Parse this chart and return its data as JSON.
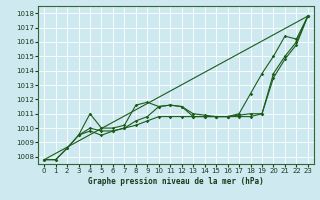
{
  "title": "Graphe pression niveau de la mer (hPa)",
  "bg_color": "#cee9f0",
  "grid_color": "#ffffff",
  "line_color": "#1a5c1a",
  "xlim": [
    -0.5,
    23.5
  ],
  "ylim": [
    1007.5,
    1018.5
  ],
  "yticks": [
    1008,
    1009,
    1010,
    1011,
    1012,
    1013,
    1014,
    1015,
    1016,
    1017,
    1018
  ],
  "xticks": [
    0,
    1,
    2,
    3,
    4,
    5,
    6,
    7,
    8,
    9,
    10,
    11,
    12,
    13,
    14,
    15,
    16,
    17,
    18,
    19,
    20,
    21,
    22,
    23
  ],
  "line_straight": {
    "x": [
      0,
      23
    ],
    "y": [
      1007.8,
      1017.8
    ]
  },
  "line1": {
    "x": [
      0,
      1,
      2,
      3,
      4,
      5,
      6,
      7,
      8,
      9,
      10,
      11,
      12,
      13,
      14,
      15,
      16,
      17,
      18,
      19,
      20,
      21,
      22,
      23
    ],
    "y": [
      1007.8,
      1007.8,
      1008.6,
      1009.5,
      1011.0,
      1010.0,
      1010.0,
      1010.2,
      1011.6,
      1011.8,
      1011.5,
      1011.6,
      1011.5,
      1011.0,
      1010.9,
      1010.8,
      1010.8,
      1011.0,
      1012.4,
      1013.8,
      1015.0,
      1016.4,
      1016.2,
      1017.8
    ]
  },
  "line2": {
    "x": [
      0,
      1,
      2,
      3,
      4,
      5,
      6,
      7,
      8,
      9,
      10,
      11,
      12,
      13,
      14,
      15,
      16,
      17,
      18,
      19,
      20,
      21,
      22,
      23
    ],
    "y": [
      1007.8,
      1007.8,
      1008.6,
      1009.5,
      1010.0,
      1009.8,
      1009.8,
      1010.0,
      1010.5,
      1010.8,
      1011.5,
      1011.6,
      1011.5,
      1010.8,
      1010.8,
      1010.8,
      1010.8,
      1010.9,
      1011.0,
      1011.0,
      1013.8,
      1015.0,
      1016.0,
      1017.8
    ]
  },
  "line3": {
    "x": [
      3,
      4,
      5,
      6,
      7,
      8,
      9,
      10,
      11,
      12,
      13,
      14,
      15,
      16,
      17,
      18,
      19,
      20,
      21,
      22,
      23
    ],
    "y": [
      1009.5,
      1009.8,
      1009.5,
      1009.8,
      1010.0,
      1010.2,
      1010.5,
      1010.8,
      1010.8,
      1010.8,
      1010.8,
      1010.8,
      1010.8,
      1010.8,
      1010.8,
      1010.8,
      1011.0,
      1013.5,
      1014.8,
      1015.8,
      1017.8
    ]
  }
}
